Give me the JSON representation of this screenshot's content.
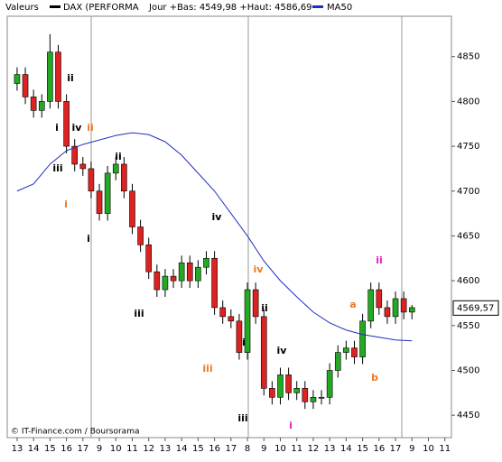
{
  "chart_data": {
    "type": "candlestick",
    "legend_label": "Valeurs",
    "series_name": "DAX (PERFORMA",
    "day_info": "Jour +Bas: 4549,98 +Haut: 4586,69",
    "source": "© IT-Finance.com / Boursorama",
    "last_price": {
      "value": 4569.57,
      "label": "4569,57"
    },
    "up_color": "#22aa22",
    "down_color": "#dd2222",
    "x": [
      0,
      0.5,
      1,
      1.5,
      2,
      2.5,
      3,
      3.5,
      4,
      4.5,
      5,
      5.5,
      6,
      6.5,
      7,
      7.5,
      8,
      8.5,
      9,
      9.5,
      10,
      10.5,
      11,
      11.5,
      12,
      12.5,
      13,
      13.5,
      14,
      14.5,
      15,
      15.5,
      16,
      16.5,
      17,
      17.5,
      18,
      18.5,
      19,
      19.5,
      20,
      20.5,
      21,
      21.5,
      22,
      22.5,
      23,
      23.5,
      24
    ],
    "open": [
      4820,
      4830,
      4805,
      4790,
      4800,
      4855,
      4800,
      4750,
      4730,
      4725,
      4700,
      4675,
      4720,
      4730,
      4700,
      4660,
      4640,
      4610,
      4590,
      4605,
      4600,
      4620,
      4600,
      4615,
      4625,
      4570,
      4560,
      4555,
      4520,
      4590,
      4560,
      4480,
      4470,
      4495,
      4475,
      4480,
      4465,
      4470,
      4470,
      4500,
      4520,
      4525,
      4515,
      4555,
      4590,
      4570,
      4560,
      4580,
      4565
    ],
    "high": [
      4838,
      4838,
      4813,
      4808,
      4875,
      4863,
      4808,
      4758,
      4738,
      4733,
      4708,
      4728,
      4738,
      4738,
      4708,
      4668,
      4648,
      4618,
      4613,
      4613,
      4628,
      4628,
      4623,
      4633,
      4633,
      4578,
      4568,
      4563,
      4598,
      4598,
      4568,
      4488,
      4503,
      4503,
      4488,
      4488,
      4478,
      4478,
      4508,
      4528,
      4533,
      4533,
      4563,
      4598,
      4598,
      4578,
      4588,
      4588,
      4573
    ],
    "low": [
      4812,
      4797,
      4782,
      4782,
      4792,
      4792,
      4742,
      4722,
      4717,
      4692,
      4667,
      4667,
      4712,
      4692,
      4652,
      4632,
      4602,
      4582,
      4582,
      4592,
      4592,
      4592,
      4592,
      4607,
      4562,
      4552,
      4547,
      4512,
      4512,
      4552,
      4472,
      4462,
      4462,
      4467,
      4467,
      4457,
      4457,
      4462,
      4462,
      4492,
      4512,
      4507,
      4507,
      4547,
      4562,
      4552,
      4552,
      4557,
      4557
    ],
    "close": [
      4830,
      4805,
      4790,
      4800,
      4855,
      4800,
      4750,
      4730,
      4725,
      4700,
      4675,
      4720,
      4730,
      4700,
      4660,
      4640,
      4610,
      4590,
      4605,
      4600,
      4620,
      4600,
      4615,
      4625,
      4570,
      4560,
      4555,
      4520,
      4590,
      4560,
      4480,
      4470,
      4495,
      4475,
      4480,
      4465,
      4470,
      4470,
      4500,
      4520,
      4525,
      4515,
      4555,
      4590,
      4570,
      4560,
      4580,
      4565,
      4570
    ],
    "ma": {
      "name": "MA50",
      "color": "#1f2fbf",
      "x": [
        0,
        1,
        2,
        3,
        4,
        5,
        6,
        7,
        8,
        9,
        10,
        11,
        12,
        13,
        14,
        15,
        16,
        17,
        18,
        19,
        20,
        21,
        22,
        23,
        24
      ],
      "values": [
        4700,
        4708,
        4730,
        4745,
        4752,
        4757,
        4762,
        4765,
        4763,
        4755,
        4740,
        4720,
        4700,
        4675,
        4650,
        4622,
        4600,
        4582,
        4565,
        4553,
        4545,
        4540,
        4537,
        4534,
        4533
      ]
    },
    "annotations": [
      {
        "text": "ii",
        "color": "#000000"
      },
      {
        "text": "i",
        "color": "#000000"
      },
      {
        "text": "iv",
        "color": "#000000"
      },
      {
        "text": "ii",
        "color": "#f07820"
      },
      {
        "text": "iii",
        "color": "#000000"
      },
      {
        "text": "ii",
        "color": "#000000"
      },
      {
        "text": "i",
        "color": "#f07820"
      },
      {
        "text": "i",
        "color": "#000000"
      },
      {
        "text": "iv",
        "color": "#000000"
      },
      {
        "text": "iv",
        "color": "#f07820"
      },
      {
        "text": "ii",
        "color": "#000000"
      },
      {
        "text": "iii",
        "color": "#000000"
      },
      {
        "text": "i",
        "color": "#000000"
      },
      {
        "text": "iii",
        "color": "#f07820"
      },
      {
        "text": "iv",
        "color": "#000000"
      },
      {
        "text": "iii",
        "color": "#000000"
      },
      {
        "text": "i",
        "color": "#e020c0"
      },
      {
        "text": "ii",
        "color": "#e020c0"
      },
      {
        "text": "a",
        "color": "#f07820"
      },
      {
        "text": "b",
        "color": "#f07820"
      }
    ],
    "xlim": [
      -0.6,
      26.4
    ],
    "xticks": [
      {
        "value": 0,
        "label": "13"
      },
      {
        "value": 1,
        "label": "14"
      },
      {
        "value": 2,
        "label": "15"
      },
      {
        "value": 3,
        "label": "16"
      },
      {
        "value": 4,
        "label": "17"
      },
      {
        "value": 5,
        "label": "9"
      },
      {
        "value": 6,
        "label": "10"
      },
      {
        "value": 7,
        "label": "11"
      },
      {
        "value": 8,
        "label": "12"
      },
      {
        "value": 9,
        "label": "13"
      },
      {
        "value": 10,
        "label": "14"
      },
      {
        "value": 11,
        "label": "15"
      },
      {
        "value": 12,
        "label": "16"
      },
      {
        "value": 13,
        "label": "17"
      },
      {
        "value": 14,
        "label": "8"
      },
      {
        "value": 15,
        "label": "9"
      },
      {
        "value": 16,
        "label": "10"
      },
      {
        "value": 17,
        "label": "11"
      },
      {
        "value": 18,
        "label": "12"
      },
      {
        "value": 19,
        "label": "13"
      },
      {
        "value": 20,
        "label": "14"
      },
      {
        "value": 21,
        "label": "15"
      },
      {
        "value": 22,
        "label": "16"
      },
      {
        "value": 23,
        "label": "17"
      },
      {
        "value": 24,
        "label": "9"
      },
      {
        "value": 25,
        "label": "10"
      },
      {
        "value": 26,
        "label": "11"
      }
    ],
    "ylim": [
      4425,
      4895
    ],
    "yticks": [
      4450,
      4500,
      4550,
      4600,
      4650,
      4700,
      4750,
      4800,
      4850
    ]
  }
}
